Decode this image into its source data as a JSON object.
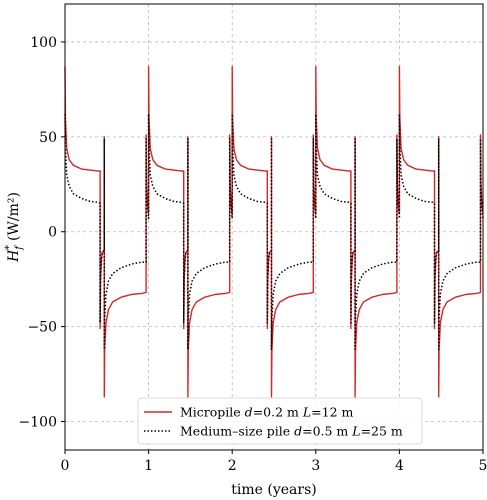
{
  "chart_data": {
    "type": "line",
    "xlabel": "time (years)",
    "ylabel_main": "H",
    "ylabel_sub": "f",
    "ylabel_sup": "*",
    "ylabel_units": "(W/m²)",
    "xlim": [
      0,
      5
    ],
    "ylim": [
      -115,
      120
    ],
    "x_ticks": [
      0,
      1,
      2,
      3,
      4,
      5
    ],
    "x_tick_labels": [
      "0",
      "1",
      "2",
      "3",
      "4",
      "5"
    ],
    "y_ticks": [
      -100,
      -50,
      0,
      50,
      100
    ],
    "y_tick_labels": [
      "−100",
      "−50",
      "0",
      "50",
      "100"
    ],
    "grid": true,
    "legend_position": "bottom-center",
    "period_years": 1,
    "series": [
      {
        "name": "Micropile d=0.2 m L=12 m",
        "legend_parts": [
          "Micropile ",
          "d",
          "=0.2 m ",
          "L",
          "=12 m"
        ],
        "color": "#d62728",
        "dash": "solid",
        "cycle": [
          [
            0.0,
            87
          ],
          [
            0.005,
            60
          ],
          [
            0.02,
            44
          ],
          [
            0.05,
            38
          ],
          [
            0.1,
            35
          ],
          [
            0.2,
            33
          ],
          [
            0.3,
            32.5
          ],
          [
            0.4,
            32
          ],
          [
            0.42,
            32
          ],
          [
            0.42,
            -51
          ],
          [
            0.425,
            -25
          ],
          [
            0.435,
            -15
          ],
          [
            0.445,
            -11
          ],
          [
            0.455,
            -10.5
          ],
          [
            0.465,
            -10
          ],
          [
            0.47,
            -10
          ],
          [
            0.47,
            50
          ],
          [
            0.47,
            -87
          ],
          [
            0.475,
            -62
          ],
          [
            0.49,
            -48
          ],
          [
            0.52,
            -41
          ],
          [
            0.57,
            -37
          ],
          [
            0.67,
            -34.5
          ],
          [
            0.8,
            -33
          ],
          [
            0.92,
            -32.5
          ],
          [
            0.97,
            -32
          ],
          [
            0.97,
            51
          ],
          [
            0.975,
            25
          ],
          [
            0.985,
            15
          ],
          [
            0.995,
            11
          ],
          [
            1.0,
            10
          ]
        ]
      },
      {
        "name": "Medium-size pile d=0.5 m L=25 m",
        "legend_parts": [
          "Medium–size pile ",
          "d",
          "=0.5 m ",
          "L",
          "=25 m"
        ],
        "color": "#000000",
        "dash": "dotted",
        "cycle": [
          [
            0.0,
            62
          ],
          [
            0.005,
            45
          ],
          [
            0.02,
            30
          ],
          [
            0.05,
            24
          ],
          [
            0.1,
            20
          ],
          [
            0.2,
            17.5
          ],
          [
            0.3,
            16
          ],
          [
            0.4,
            15.5
          ],
          [
            0.42,
            15
          ],
          [
            0.42,
            -48
          ],
          [
            0.425,
            -25
          ],
          [
            0.435,
            -15
          ],
          [
            0.445,
            -11
          ],
          [
            0.455,
            -10.5
          ],
          [
            0.465,
            -10
          ],
          [
            0.47,
            -10
          ],
          [
            0.47,
            49
          ],
          [
            0.47,
            -62
          ],
          [
            0.475,
            -45
          ],
          [
            0.49,
            -33
          ],
          [
            0.52,
            -26
          ],
          [
            0.57,
            -22
          ],
          [
            0.67,
            -19
          ],
          [
            0.8,
            -17
          ],
          [
            0.92,
            -16
          ],
          [
            0.97,
            -16
          ],
          [
            0.97,
            49
          ],
          [
            0.975,
            25
          ],
          [
            0.985,
            15
          ],
          [
            0.995,
            9
          ],
          [
            1.0,
            7
          ]
        ]
      }
    ]
  }
}
